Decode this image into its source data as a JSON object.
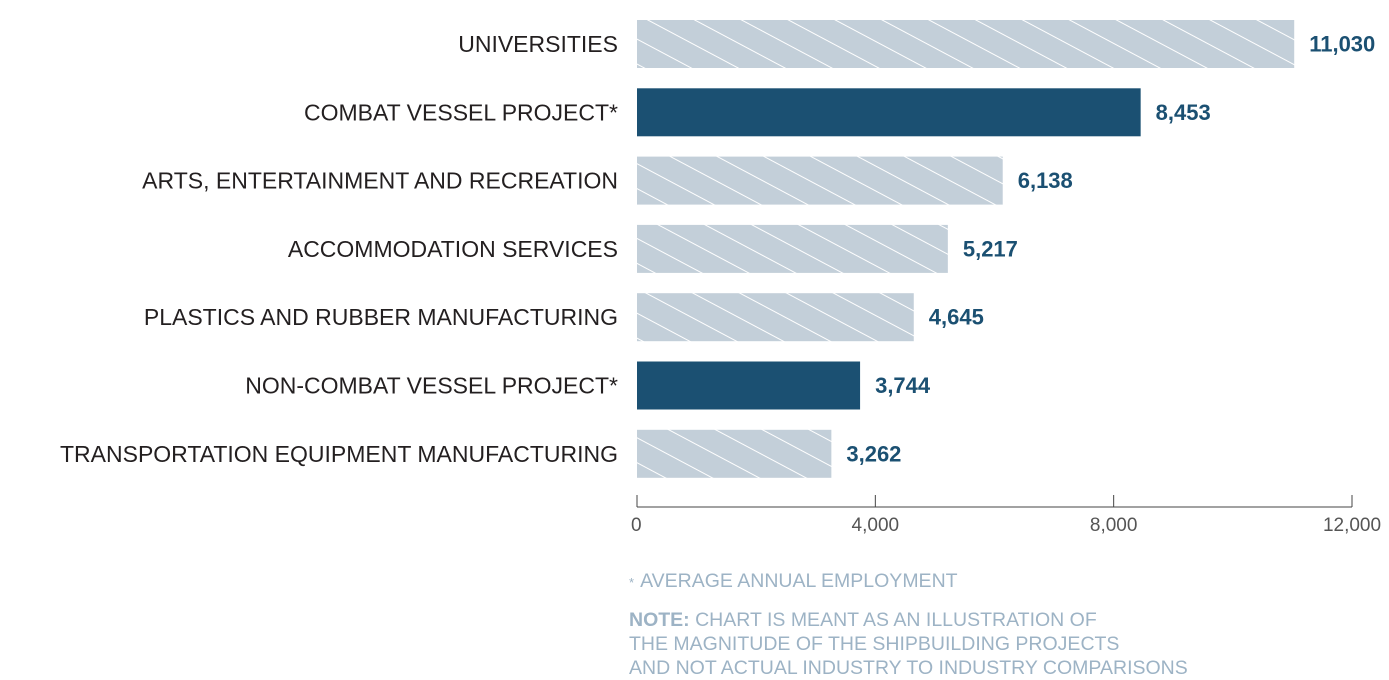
{
  "chart_data": {
    "type": "bar",
    "orientation": "horizontal",
    "categories": [
      "UNIVERSITIES",
      "COMBAT VESSEL PROJECT*",
      "ARTS, ENTERTAINMENT AND RECREATION",
      "ACCOMMODATION SERVICES",
      "PLASTICS AND RUBBER MANUFACTURING",
      "NON-COMBAT VESSEL PROJECT*",
      "TRANSPORTATION EQUIPMENT MANUFACTURING"
    ],
    "values": [
      11030,
      8453,
      6138,
      5217,
      4645,
      3744,
      3262
    ],
    "value_labels": [
      "11,030",
      "8,453",
      "6,138",
      "5,217",
      "4,645",
      "3,744",
      "3,262"
    ],
    "highlighted": [
      false,
      true,
      false,
      false,
      false,
      true,
      false
    ],
    "xlim": [
      0,
      12000
    ],
    "xticks": [
      0,
      4000,
      8000,
      12000
    ],
    "xtick_labels": [
      "0",
      "4,000",
      "8,000",
      "12,000"
    ],
    "grid": false,
    "colors": {
      "highlight": "#1b5072",
      "hatched_fill": "#c3cfd9",
      "hatch_stripe": "#ffffff",
      "value_label": "#1b5072",
      "category_label": "#231f20",
      "axis": "#444444",
      "notes_text": "#9db3c5"
    }
  },
  "notes": {
    "footnote_marker": "*",
    "footnote_text": "AVERAGE ANNUAL EMPLOYMENT",
    "note_prefix": "NOTE:",
    "note_line1": "CHART IS MEANT AS AN ILLUSTRATION OF",
    "note_line2": "THE MAGNITUDE OF THE SHIPBUILDING PROJECTS",
    "note_line3": "AND NOT ACTUAL INDUSTRY TO INDUSTRY COMPARISONS"
  }
}
